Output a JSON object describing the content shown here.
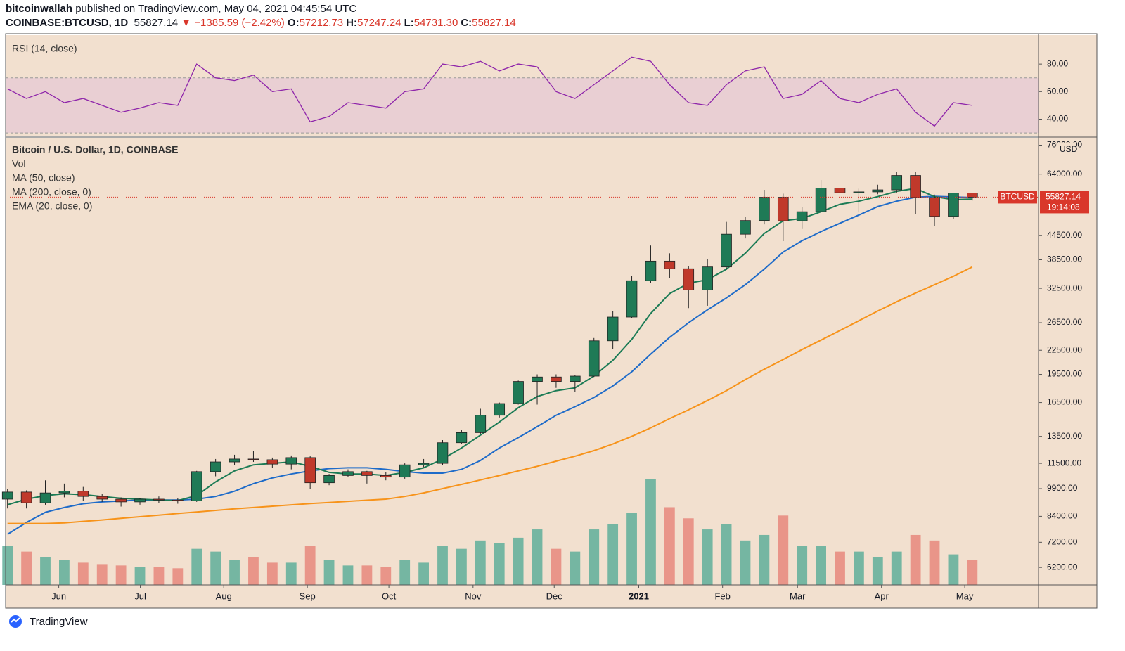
{
  "header": {
    "author": "bitcoinwallah",
    "published": "published on TradingView.com, May 04, 2021 04:45:54 UTC",
    "symbol": "COINBASE:BTCUSD, 1D",
    "last": "55827.14",
    "change": "−1385.59 (−2.42%)",
    "ohlc": [
      {
        "key": "O:",
        "value": "57212.73"
      },
      {
        "key": "H:",
        "value": "57247.24"
      },
      {
        "key": "L:",
        "value": "54731.30"
      },
      {
        "key": "C:",
        "value": "55827.14"
      }
    ]
  },
  "chart_data": [
    {
      "type": "line",
      "ylim": [
        28,
        101
      ],
      "yticks": [
        {
          "value": 40,
          "label": "40.00"
        },
        {
          "value": 60,
          "label": "60.00"
        },
        {
          "value": 80,
          "label": "80.00"
        }
      ],
      "band": [
        30,
        70
      ],
      "band_color": "#e9cfd3",
      "series": [
        {
          "name": "RSI (14, close)",
          "color": "#8e24aa",
          "values": [
            62,
            55,
            60,
            52,
            55,
            50,
            45,
            48,
            52,
            50,
            80,
            70,
            68,
            72,
            60,
            62,
            38,
            42,
            52,
            50,
            48,
            60,
            62,
            80,
            78,
            82,
            75,
            80,
            78,
            60,
            55,
            65,
            75,
            85,
            82,
            65,
            52,
            50,
            65,
            75,
            78,
            55,
            58,
            68,
            55,
            52,
            58,
            62,
            45,
            35,
            52,
            50
          ]
        }
      ]
    },
    {
      "type": "candlestick",
      "title": "Bitcoin / U.S. Dollar, 1D, COINBASE",
      "log_scale": true,
      "currency": "USD",
      "ylim": [
        5590,
        79400
      ],
      "yticks": [
        {
          "value": 6200,
          "label": "6200.00"
        },
        {
          "value": 7200,
          "label": "7200.00"
        },
        {
          "value": 8400,
          "label": "8400.00"
        },
        {
          "value": 9900,
          "label": "9900.00"
        },
        {
          "value": 11500,
          "label": "11500.00"
        },
        {
          "value": 13500,
          "label": "13500.00"
        },
        {
          "value": 16500,
          "label": "16500.00"
        },
        {
          "value": 19500,
          "label": "19500.00"
        },
        {
          "value": 22500,
          "label": "22500.00"
        },
        {
          "value": 26500,
          "label": "26500.00"
        },
        {
          "value": 32500,
          "label": "32500.00"
        },
        {
          "value": 38500,
          "label": "38500.00"
        },
        {
          "value": 44500,
          "label": "44500.00"
        },
        {
          "value": 64000,
          "label": "64000.00"
        },
        {
          "value": 76000,
          "label": "76000.00"
        }
      ],
      "xlim": [
        -0.1,
        54.5
      ],
      "xticks": [
        {
          "value": 2.71,
          "label": "Jun"
        },
        {
          "value": 7.02,
          "label": "Jul"
        },
        {
          "value": 11.43,
          "label": "Aug"
        },
        {
          "value": 15.85,
          "label": "Sep"
        },
        {
          "value": 20.16,
          "label": "Oct"
        },
        {
          "value": 24.61,
          "label": "Nov"
        },
        {
          "value": 28.9,
          "label": "Dec"
        },
        {
          "value": 33.37,
          "label": "2021"
        },
        {
          "value": 37.8,
          "label": "Feb"
        },
        {
          "value": 41.76,
          "label": "Mar"
        },
        {
          "value": 46.2,
          "label": "Apr"
        },
        {
          "value": 50.6,
          "label": "May"
        }
      ],
      "up_color": "#1f7a56",
      "down_color": "#c0392b",
      "open": [
        9300,
        9700,
        9100,
        9650,
        9750,
        9450,
        9300,
        9150,
        9300,
        9250,
        9200,
        10950,
        11600,
        11800,
        11750,
        11450,
        11900,
        10250,
        10700,
        10950,
        10700,
        10600,
        11400,
        11500,
        13000,
        13800,
        15300,
        16400,
        18700,
        19200,
        18700,
        19300,
        23800,
        27400,
        34000,
        38200,
        36500,
        32200,
        36900,
        44800,
        48600,
        55800,
        48500,
        51200,
        58900,
        57300,
        57600,
        58300,
        63500,
        55700,
        49800,
        57212.73
      ],
      "high": [
        9900,
        9800,
        10400,
        10200,
        10000,
        9600,
        9400,
        9350,
        9450,
        9350,
        11000,
        11800,
        12100,
        12400,
        11900,
        12050,
        12000,
        10800,
        11100,
        11000,
        10900,
        11500,
        11800,
        13200,
        14000,
        15900,
        16500,
        18800,
        19500,
        19500,
        19400,
        24200,
        28400,
        35000,
        41900,
        40000,
        37000,
        38600,
        48200,
        49700,
        58300,
        57000,
        52600,
        61800,
        60000,
        58700,
        60100,
        64800,
        64900,
        56700,
        57200,
        57247.24
      ],
      "low": [
        8800,
        8800,
        9000,
        9400,
        9200,
        9150,
        8900,
        9000,
        9100,
        9050,
        9150,
        10650,
        11400,
        11600,
        11200,
        11100,
        9900,
        10100,
        10600,
        10200,
        10400,
        10500,
        11250,
        11400,
        12900,
        13700,
        15100,
        16300,
        16300,
        18000,
        17600,
        19200,
        22700,
        27200,
        33500,
        34500,
        28900,
        29300,
        36300,
        43700,
        47500,
        43000,
        46200,
        51000,
        53000,
        51000,
        56800,
        57300,
        50500,
        47000,
        49000,
        54731.3
      ],
      "close": [
        9700,
        9100,
        9650,
        9750,
        9450,
        9300,
        9150,
        9300,
        9250,
        9200,
        10950,
        11600,
        11800,
        11750,
        11450,
        11900,
        10250,
        10700,
        10950,
        10700,
        10600,
        11400,
        11500,
        13000,
        13800,
        15300,
        16400,
        18700,
        19200,
        18700,
        19300,
        23800,
        27400,
        34000,
        38200,
        36500,
        32200,
        36900,
        44800,
        48600,
        55800,
        48500,
        51200,
        58900,
        57300,
        57600,
        58300,
        63500,
        55700,
        49800,
        57200,
        55827.14
      ],
      "volume": {
        "name": "Vol",
        "up_color": "#5fae9a",
        "down_color": "#e8877c",
        "values": [
          14000,
          12000,
          10000,
          9000,
          8000,
          7500,
          7000,
          6500,
          6500,
          6000,
          13000,
          12000,
          9000,
          10000,
          8000,
          8000,
          14000,
          9000,
          7000,
          7000,
          6500,
          9000,
          8000,
          14000,
          13000,
          16000,
          15000,
          17000,
          20000,
          13000,
          12000,
          20000,
          22000,
          26000,
          38000,
          28000,
          24000,
          20000,
          22000,
          16000,
          18000,
          25000,
          14000,
          14000,
          12000,
          12000,
          10000,
          12000,
          18000,
          16000,
          11000,
          9000
        ]
      },
      "series": [
        {
          "name": "MA (50, close)",
          "color": "#1e6bc9",
          "values": [
            7550,
            8100,
            8600,
            8850,
            9050,
            9150,
            9200,
            9250,
            9250,
            9250,
            9300,
            9450,
            9750,
            10200,
            10550,
            10800,
            11000,
            11150,
            11200,
            11200,
            11100,
            10950,
            10850,
            10850,
            11100,
            11700,
            12600,
            13400,
            14300,
            15300,
            16100,
            17000,
            18200,
            19800,
            22000,
            24300,
            26500,
            28600,
            30700,
            33200,
            36400,
            40300,
            43100,
            45500,
            47800,
            50200,
            52800,
            54500,
            55800,
            56100,
            55900,
            55700
          ]
        },
        {
          "name": "MA (200, close, 0)",
          "color": "#f7931a",
          "values": [
            8050,
            8050,
            8050,
            8080,
            8150,
            8220,
            8300,
            8380,
            8460,
            8540,
            8620,
            8700,
            8780,
            8850,
            8920,
            8990,
            9060,
            9120,
            9180,
            9240,
            9300,
            9450,
            9650,
            9900,
            10150,
            10420,
            10700,
            11000,
            11300,
            11650,
            12000,
            12400,
            12900,
            13500,
            14200,
            15000,
            15800,
            16700,
            17700,
            18900,
            20100,
            21300,
            22600,
            23900,
            25300,
            26800,
            28400,
            30000,
            31600,
            33200,
            34900,
            36900
          ]
        },
        {
          "name": "EMA (20, close, 0)",
          "color": "#1b7b55",
          "values": [
            9000,
            9300,
            9500,
            9600,
            9550,
            9450,
            9350,
            9300,
            9250,
            9220,
            9500,
            10300,
            11000,
            11400,
            11500,
            11600,
            11300,
            10900,
            10800,
            10800,
            10700,
            10900,
            11200,
            11800,
            12600,
            13600,
            14700,
            16000,
            17100,
            17700,
            18000,
            19300,
            21200,
            24000,
            28000,
            31500,
            33500,
            34200,
            36400,
            40000,
            45000,
            48500,
            49200,
            51200,
            53500,
            54500,
            56000,
            57800,
            58800,
            56000,
            55000,
            55200
          ]
        }
      ],
      "last_label": {
        "symbol": "BTCUSD",
        "price": "55827.14",
        "countdown": "19:14:08"
      }
    }
  ],
  "footer": {
    "brand": "TradingView"
  }
}
